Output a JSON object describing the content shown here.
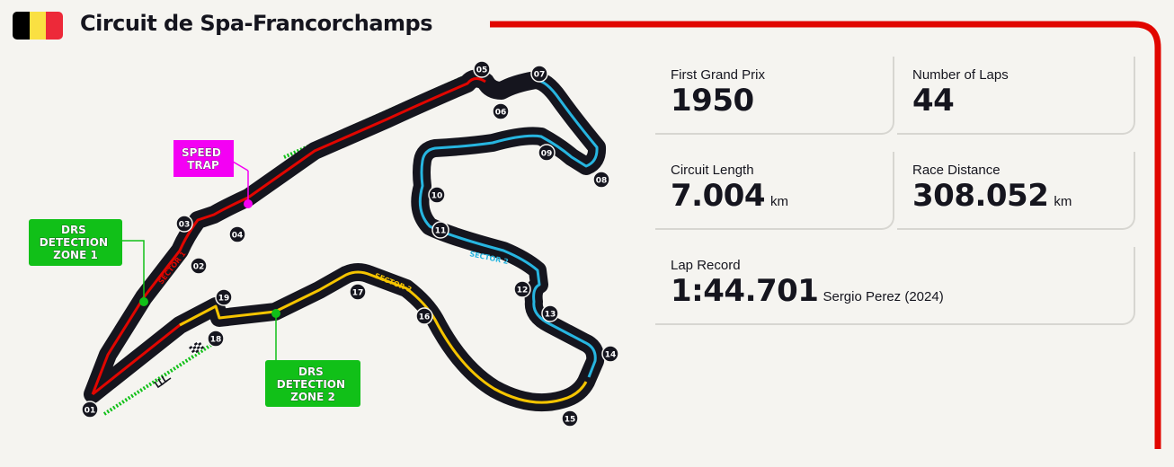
{
  "header": {
    "title": "Circuit de Spa-Francorchamps",
    "flag_colors": [
      "#000000",
      "#fae042",
      "#ed2939"
    ],
    "accent_color": "#e10600"
  },
  "map": {
    "speed_trap_label": [
      "SPEED",
      "TRAP"
    ],
    "drs_zone_1_label": [
      "DRS",
      "DETECTION",
      "ZONE 1"
    ],
    "drs_zone_2_label": [
      "DRS",
      "DETECTION",
      "ZONE 2"
    ],
    "sector_labels": [
      "SECTOR 1",
      "SECTOR 2",
      "SECTOR 3"
    ],
    "sector_colors": [
      "#e10600",
      "#27b5e0",
      "#f5c400"
    ],
    "drs_color": "#11c018",
    "speed_trap_color": "#f400f4",
    "turns": [
      "01",
      "02",
      "03",
      "04",
      "05",
      "06",
      "07",
      "08",
      "09",
      "10",
      "11",
      "12",
      "13",
      "14",
      "15",
      "16",
      "17",
      "18",
      "19"
    ]
  },
  "stats": {
    "first_grand_prix": {
      "label": "First Grand Prix",
      "value": "1950"
    },
    "number_of_laps": {
      "label": "Number of Laps",
      "value": "44"
    },
    "circuit_length": {
      "label": "Circuit Length",
      "value": "7.004",
      "unit": "km"
    },
    "race_distance": {
      "label": "Race Distance",
      "value": "308.052",
      "unit": "km"
    },
    "lap_record": {
      "label": "Lap Record",
      "value": "1:44.701",
      "holder": "Sergio Perez (2024)"
    }
  }
}
